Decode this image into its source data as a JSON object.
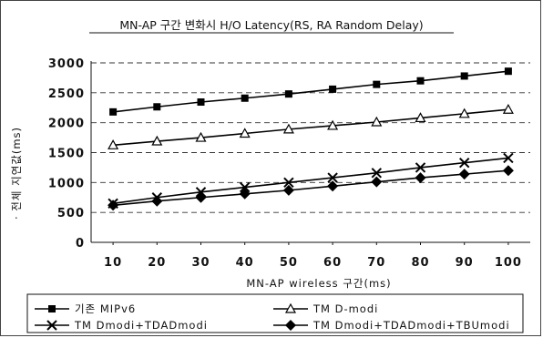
{
  "chart_data": {
    "type": "line",
    "title": "MN-AP 구간 변화시 H/O Latency(RS, RA Random Delay)",
    "xlabel": "MN-AP wireless 구간(ms)",
    "ylabel": "· 전체 지연값(ms)",
    "categories": [
      10,
      20,
      30,
      40,
      50,
      60,
      70,
      80,
      90,
      100
    ],
    "ylim": [
      0,
      3000
    ],
    "yticks": [
      0,
      500,
      1000,
      1500,
      2000,
      2500,
      3000
    ],
    "grid": "horizontal-dashed",
    "legend_placement": "bottom",
    "series": [
      {
        "name": "기존 MIPv6",
        "marker": "square",
        "values": [
          2180,
          2265,
          2345,
          2410,
          2480,
          2560,
          2640,
          2700,
          2780,
          2860
        ]
      },
      {
        "name": "TM D-modi",
        "marker": "triangle",
        "values": [
          1625,
          1690,
          1750,
          1820,
          1890,
          1950,
          2010,
          2080,
          2150,
          2220
        ]
      },
      {
        "name": "TM Dmodi+TDADmodi",
        "marker": "x",
        "values": [
          650,
          750,
          840,
          920,
          1000,
          1080,
          1160,
          1250,
          1330,
          1410
        ]
      },
      {
        "name": "TM Dmodi+TDADmodi+TBUmodi",
        "marker": "diamond",
        "values": [
          620,
          690,
          750,
          810,
          870,
          940,
          1010,
          1080,
          1140,
          1200
        ]
      }
    ]
  }
}
